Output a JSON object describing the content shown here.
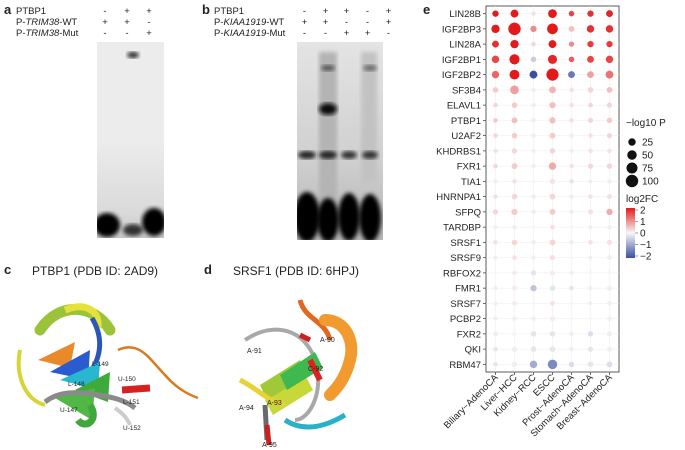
{
  "panels": {
    "a": {
      "label": "a",
      "rows": [
        {
          "name": "PTBP1",
          "signs": [
            "-",
            "+",
            "+"
          ]
        },
        {
          "name": "P-TRIM38-WT",
          "prefix": "P-",
          "gene": "TRIM38",
          "suffix": "-WT",
          "signs": [
            "+",
            "+",
            "-"
          ]
        },
        {
          "name": "P-TRIM38-Mut",
          "prefix": "P-",
          "gene": "TRIM38",
          "suffix": "-Mut",
          "signs": [
            "-",
            "-",
            "+"
          ]
        }
      ]
    },
    "b": {
      "label": "b",
      "rows": [
        {
          "name": "PTBP1",
          "signs": [
            "-",
            "+",
            "+",
            "-",
            "+"
          ]
        },
        {
          "name": "P-KIAA1919-WT",
          "prefix": "P-",
          "gene": "KIAA1919",
          "suffix": "-WT",
          "signs": [
            "+",
            "+",
            "-",
            "-",
            "+"
          ]
        },
        {
          "name": "P-KIAA1919-Mut",
          "prefix": "P-",
          "gene": "KIAA1919",
          "suffix": "-Mut",
          "signs": [
            "-",
            "-",
            "+",
            "+",
            "-"
          ]
        }
      ]
    },
    "c": {
      "label": "c",
      "title": "PTBP1 (PDB ID: 2AD9)",
      "residue_labels": [
        "U-150",
        "L-149",
        "L-151",
        "U-152",
        "U-147",
        "L-148"
      ]
    },
    "d": {
      "label": "d",
      "title": "SRSF1 (PDB ID: 6HPJ)",
      "residue_labels": [
        "A-90",
        "A-91",
        "C-92",
        "A-93",
        "A-94",
        "A-95"
      ]
    },
    "e": {
      "label": "e",
      "legend_size_title": "−log10 P",
      "legend_size_values": [
        "25",
        "50",
        "75",
        "100"
      ],
      "legend_color_title": "log2FC",
      "legend_color_ticks": [
        "2",
        "1",
        "0",
        "−1",
        "−2"
      ]
    }
  },
  "chart_data": {
    "type": "scatter",
    "subtype": "dot-matrix",
    "x_categories": [
      "Biliary−AdenoCA",
      "Liver−HCC",
      "Kidney−RCC",
      "ESCC",
      "Prost−AdenoCA",
      "Stomach−AdenoCA",
      "Breast−AdenoCA"
    ],
    "y_categories": [
      "LIN28B",
      "IGF2BP3",
      "LIN28A",
      "IGF2BP1",
      "IGF2BP2",
      "SF3B4",
      "ELAVL1",
      "PTBP1",
      "U2AF2",
      "KHDRBS1",
      "FXR1",
      "TIA1",
      "HNRNPA1",
      "SFPQ",
      "TARDBP",
      "SRSF1",
      "SRSF9",
      "RBFOX2",
      "FMR1",
      "SRSF7",
      "PCBP2",
      "FXR2",
      "QKI",
      "RBM47"
    ],
    "log2FC": [
      [
        2.0,
        2.2,
        0.2,
        2.1,
        1.6,
        1.8,
        1.9
      ],
      [
        2.0,
        2.3,
        1.0,
        2.2,
        0.5,
        1.8,
        1.8
      ],
      [
        1.8,
        2.1,
        0.3,
        2.0,
        1.0,
        1.7,
        1.7
      ],
      [
        1.6,
        2.0,
        -0.5,
        1.9,
        1.4,
        1.6,
        1.6
      ],
      [
        1.3,
        2.0,
        -2.0,
        2.1,
        -1.5,
        0.8,
        1.2
      ],
      [
        0.4,
        0.8,
        0.1,
        0.6,
        0.2,
        0.3,
        0.5
      ],
      [
        0.3,
        0.4,
        0.1,
        0.5,
        0.2,
        0.3,
        0.3
      ],
      [
        0.4,
        0.5,
        0.1,
        0.5,
        0.2,
        0.3,
        0.4
      ],
      [
        0.3,
        0.4,
        0.1,
        0.4,
        0.1,
        0.2,
        0.3
      ],
      [
        0.2,
        0.3,
        0.1,
        0.3,
        0.1,
        0.2,
        0.2
      ],
      [
        0.3,
        0.4,
        0.1,
        0.7,
        0.2,
        0.3,
        0.3
      ],
      [
        0.1,
        0.2,
        0.0,
        0.2,
        -0.2,
        0.1,
        0.1
      ],
      [
        0.2,
        0.3,
        0.1,
        0.3,
        0.1,
        0.2,
        0.2
      ],
      [
        0.3,
        0.4,
        0.1,
        0.4,
        0.1,
        0.2,
        0.7
      ],
      [
        0.1,
        0.1,
        0.0,
        0.2,
        0.0,
        0.1,
        0.1
      ],
      [
        0.2,
        0.3,
        0.1,
        0.3,
        0.1,
        0.2,
        0.2
      ],
      [
        0.1,
        0.2,
        -0.1,
        0.2,
        0.0,
        0.1,
        0.1
      ],
      [
        0.0,
        0.1,
        -0.2,
        0.1,
        -0.1,
        0.0,
        0.0
      ],
      [
        -0.1,
        0.1,
        -0.6,
        -0.2,
        -0.2,
        -0.1,
        -0.1
      ],
      [
        0.1,
        0.1,
        0.0,
        0.2,
        0.0,
        0.1,
        0.1
      ],
      [
        0.1,
        0.1,
        -0.1,
        0.1,
        0.0,
        0.0,
        0.1
      ],
      [
        -0.1,
        0.0,
        -0.2,
        -0.2,
        -0.1,
        -0.3,
        -0.1
      ],
      [
        -0.2,
        -0.1,
        -0.2,
        -0.2,
        -0.1,
        -0.2,
        -0.1
      ],
      [
        -0.2,
        -0.1,
        -0.9,
        -1.3,
        -0.3,
        -0.2,
        -0.3
      ]
    ],
    "neglog10P": [
      [
        15,
        30,
        5,
        40,
        10,
        15,
        20
      ],
      [
        35,
        100,
        15,
        70,
        12,
        25,
        25
      ],
      [
        20,
        35,
        5,
        30,
        8,
        15,
        15
      ],
      [
        25,
        60,
        10,
        45,
        10,
        20,
        25
      ],
      [
        25,
        55,
        30,
        95,
        20,
        18,
        30
      ],
      [
        10,
        40,
        5,
        20,
        5,
        10,
        12
      ],
      [
        5,
        10,
        5,
        15,
        5,
        5,
        8
      ],
      [
        5,
        12,
        5,
        15,
        5,
        8,
        10
      ],
      [
        5,
        10,
        5,
        12,
        5,
        5,
        8
      ],
      [
        3,
        8,
        3,
        10,
        3,
        5,
        5
      ],
      [
        5,
        12,
        5,
        25,
        5,
        8,
        10
      ],
      [
        3,
        5,
        3,
        8,
        5,
        3,
        5
      ],
      [
        5,
        10,
        5,
        12,
        5,
        5,
        8
      ],
      [
        8,
        15,
        5,
        12,
        5,
        8,
        15
      ],
      [
        3,
        5,
        3,
        5,
        3,
        3,
        5
      ],
      [
        5,
        10,
        5,
        12,
        5,
        5,
        8
      ],
      [
        3,
        5,
        5,
        8,
        3,
        3,
        5
      ],
      [
        3,
        5,
        8,
        8,
        3,
        5,
        5
      ],
      [
        5,
        8,
        15,
        10,
        5,
        5,
        8
      ],
      [
        3,
        5,
        3,
        5,
        3,
        3,
        5
      ],
      [
        3,
        5,
        5,
        8,
        3,
        3,
        5
      ],
      [
        5,
        8,
        10,
        10,
        5,
        8,
        8
      ],
      [
        5,
        8,
        10,
        10,
        5,
        8,
        8
      ],
      [
        5,
        10,
        25,
        50,
        10,
        10,
        12
      ]
    ],
    "color_scale": {
      "min": -2,
      "max": 2,
      "low": "#3b4fa0",
      "mid": "#f7f7f7",
      "high": "#e31a1c"
    },
    "size_legend": [
      25,
      50,
      75,
      100
    ]
  }
}
